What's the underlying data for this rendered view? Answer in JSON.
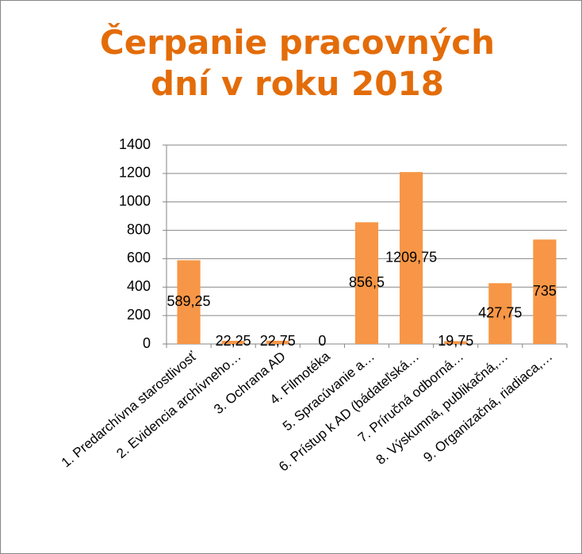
{
  "chart_data": {
    "type": "bar",
    "title": "Čerpanie pracovných dní v roku 2018",
    "categories": [
      "1. Predarchívna starostlivosť",
      "2. Evidencia archívneho…",
      "3. Ochrana AD",
      "4. Filmotéka",
      "5. Spracúvanie a…",
      "6. Prístup k AD (bádateľská…",
      "7. Príručná odborná…",
      "8. Výskumná, publikačná,…",
      "9. Organizačná, riadiaca,…"
    ],
    "values": [
      589.25,
      22.25,
      22.75,
      0,
      856.5,
      1209.75,
      19.75,
      427.75,
      735
    ],
    "value_labels": [
      "589,25",
      "22,25",
      "22,75",
      "0",
      "856,5",
      "1209,75",
      "19,75",
      "427,75",
      "735"
    ],
    "color": "#f79646",
    "ylim": [
      0,
      1400
    ],
    "yticks": [
      0,
      200,
      400,
      600,
      800,
      1000,
      1200,
      1400
    ],
    "grid": true
  }
}
